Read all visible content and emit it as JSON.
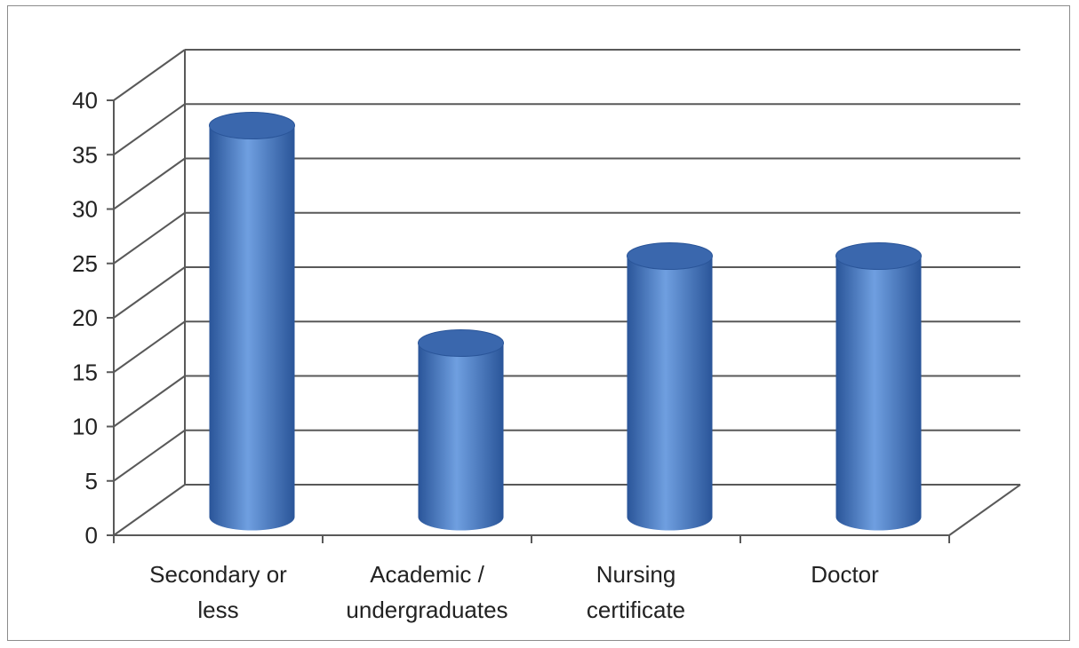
{
  "chart_data": {
    "type": "bar",
    "style": "3d-cylinder",
    "categories": [
      [
        "Secondary or",
        "less"
      ],
      [
        "Academic /",
        "undergraduates"
      ],
      [
        "Nursing",
        "certificate"
      ],
      [
        "Doctor"
      ]
    ],
    "values": [
      36,
      16,
      24,
      24
    ],
    "ylim": [
      0,
      40
    ],
    "yticks": [
      "0",
      "5",
      "10",
      "15",
      "20",
      "25",
      "30",
      "35",
      "40"
    ],
    "grid": true,
    "legend": "none",
    "colors": {
      "bar_light": "#6f9fe0",
      "bar_mid": "#4a7ec9",
      "bar_dark": "#2a5599",
      "bar_top": "#3a67ad",
      "grid": "#595959"
    }
  }
}
